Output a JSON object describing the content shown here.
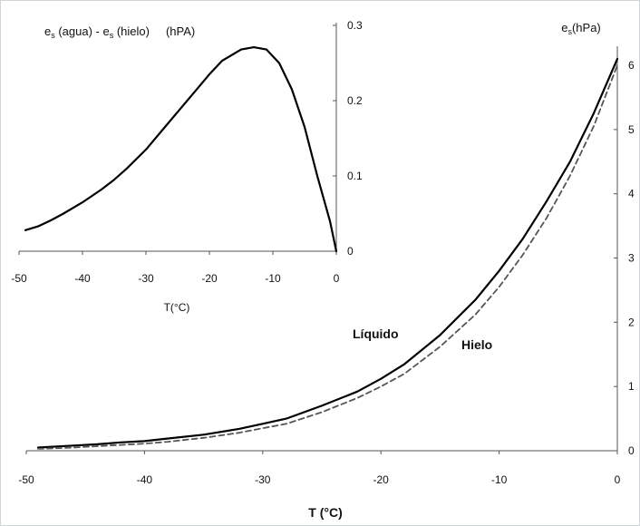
{
  "chart_data": [
    {
      "type": "line",
      "title": "",
      "xlabel": "T (°C)",
      "ylabel": "e",
      "ylabel_sub": "s",
      "ylabel_unit": "(hPa)",
      "xlim": [
        -50,
        0
      ],
      "ylim": [
        0,
        6
      ],
      "xticks": [
        "-50",
        "-40",
        "-30",
        "-20",
        "-10",
        "0"
      ],
      "yticks": [
        "0",
        "1",
        "2",
        "3",
        "4",
        "5",
        "6"
      ],
      "grid": false,
      "series": [
        {
          "name": "Líquido",
          "style": "solid",
          "color": "#000000",
          "x": [
            -49,
            -46,
            -44,
            -42,
            -40,
            -38,
            -35,
            -32,
            -30,
            -28,
            -25,
            -22,
            -20,
            -18,
            -15,
            -12,
            -10,
            -8,
            -6,
            -4,
            -2,
            0
          ],
          "y": [
            0.05,
            0.08,
            0.1,
            0.13,
            0.15,
            0.19,
            0.25,
            0.34,
            0.42,
            0.5,
            0.7,
            0.92,
            1.12,
            1.35,
            1.8,
            2.35,
            2.8,
            3.3,
            3.88,
            4.5,
            5.25,
            6.1
          ]
        },
        {
          "name": "Hielo",
          "style": "dashed",
          "color": "#555555",
          "x": [
            -49,
            -46,
            -44,
            -42,
            -40,
            -38,
            -35,
            -32,
            -30,
            -28,
            -25,
            -22,
            -20,
            -18,
            -15,
            -12,
            -10,
            -8,
            -6,
            -4,
            -2,
            0
          ],
          "y": [
            0.03,
            0.05,
            0.07,
            0.09,
            0.11,
            0.14,
            0.2,
            0.28,
            0.35,
            0.42,
            0.6,
            0.82,
            1.0,
            1.2,
            1.62,
            2.12,
            2.55,
            3.05,
            3.62,
            4.28,
            5.05,
            6.0
          ]
        }
      ],
      "annotations": [
        {
          "text": "Líquido",
          "x": -23,
          "y": 1.85
        },
        {
          "text": "Hielo",
          "x": -14,
          "y": 1.55
        }
      ]
    },
    {
      "type": "line",
      "title_parts": {
        "e": "e",
        "sub": "s",
        "agua": " (agua) - ",
        "hielo": " (hielo)",
        "unit": "(hPA)"
      },
      "xlabel": "T(°C)",
      "xlim": [
        -50,
        0
      ],
      "ylim": [
        0,
        0.3
      ],
      "xticks": [
        "-50",
        "-40",
        "-30",
        "-20",
        "-10",
        "0"
      ],
      "yticks": [
        "0",
        "0.1",
        "0.2",
        "0.3"
      ],
      "grid": false,
      "series": [
        {
          "style": "solid",
          "color": "#000000",
          "x": [
            -49,
            -47,
            -45,
            -43,
            -40,
            -37,
            -35,
            -33,
            -30,
            -27,
            -25,
            -22,
            -20,
            -18,
            -15,
            -13,
            -11,
            -9,
            -7,
            -5,
            -3,
            -2,
            -1,
            0
          ],
          "y": [
            0.028,
            0.033,
            0.041,
            0.05,
            0.065,
            0.082,
            0.095,
            0.11,
            0.135,
            0.165,
            0.185,
            0.215,
            0.235,
            0.253,
            0.268,
            0.271,
            0.268,
            0.25,
            0.215,
            0.165,
            0.1,
            0.07,
            0.04,
            0.0
          ]
        }
      ]
    }
  ]
}
